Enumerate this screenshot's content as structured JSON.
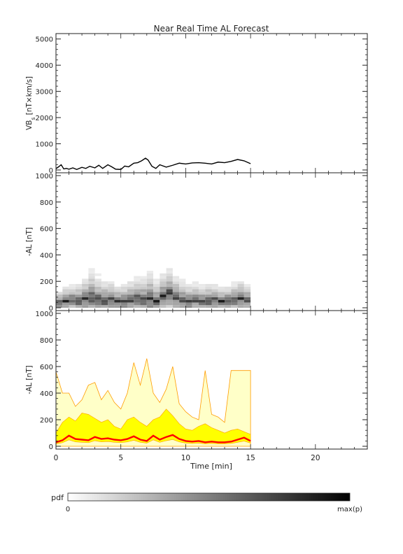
{
  "title": "Near Real Time AL Forecast",
  "x_axis": {
    "label": "Time [min]",
    "ticks": [
      0,
      5,
      10,
      15,
      20
    ],
    "range": [
      0,
      24
    ]
  },
  "colorbar": {
    "label": "pdf",
    "min_label": "0",
    "max_label": "max(p)"
  },
  "colors": {
    "median_line": "#ff0000",
    "inner_band": "#ffff00",
    "outer_band": "#ffffc8",
    "band_edge": "#ff9c00",
    "trace": "#000000"
  },
  "chart_data": [
    {
      "type": "line",
      "panel": "top",
      "ylabel_main": "VB",
      "ylabel_sub": "s",
      "ylabel_rest": " [nT×km/s]",
      "yticks": [
        0,
        1000,
        2000,
        3000,
        4000,
        5000
      ],
      "ylim": [
        0,
        5100
      ],
      "x": [
        0,
        0.2,
        0.4,
        0.6,
        0.8,
        1.0,
        1.3,
        1.6,
        2.0,
        2.3,
        2.6,
        3.0,
        3.3,
        3.6,
        4.0,
        4.3,
        4.6,
        5.0,
        5.3,
        5.6,
        6.0,
        6.3,
        6.6,
        6.9,
        7.1,
        7.4,
        7.7,
        8.0,
        8.5,
        9.0,
        9.5,
        10.0,
        10.5,
        11.0,
        11.5,
        12.0,
        12.5,
        13.0,
        13.5,
        14.0,
        14.5,
        15.0
      ],
      "values": [
        50,
        120,
        200,
        40,
        60,
        30,
        80,
        20,
        100,
        60,
        140,
        80,
        180,
        60,
        200,
        120,
        30,
        20,
        150,
        120,
        260,
        280,
        350,
        450,
        380,
        140,
        60,
        200,
        110,
        180,
        260,
        230,
        270,
        280,
        260,
        230,
        300,
        280,
        330,
        400,
        350,
        240
      ]
    },
    {
      "type": "heatmap",
      "panel": "middle",
      "ylabel": "-AL [nT]",
      "yticks": [
        0,
        200,
        400,
        600,
        800,
        1000
      ],
      "ylim": [
        0,
        1000
      ],
      "x": [
        0,
        0.5,
        1,
        1.5,
        2,
        2.5,
        3,
        3.5,
        4,
        4.5,
        5,
        5.5,
        6,
        6.5,
        7,
        7.5,
        8,
        8.5,
        9,
        9.5,
        10,
        10.5,
        11,
        11.5,
        12,
        12.5,
        13,
        13.5,
        14,
        14.5
      ],
      "median": [
        30,
        40,
        50,
        40,
        60,
        70,
        50,
        40,
        50,
        40,
        40,
        50,
        60,
        50,
        60,
        40,
        80,
        100,
        70,
        50,
        40,
        50,
        40,
        40,
        50,
        40,
        40,
        50,
        60,
        50
      ],
      "spread": [
        120,
        150,
        140,
        180,
        200,
        260,
        220,
        200,
        180,
        160,
        170,
        190,
        200,
        220,
        260,
        200,
        220,
        240,
        200,
        180,
        170,
        160,
        150,
        180,
        150,
        140,
        150,
        160,
        180,
        150
      ]
    },
    {
      "type": "area",
      "panel": "bottom",
      "ylabel": "-AL [nT]",
      "yticks": [
        0,
        200,
        400,
        600,
        800,
        1000
      ],
      "ylim": [
        0,
        1000
      ],
      "x": [
        0,
        0.5,
        1,
        1.5,
        2,
        2.5,
        3,
        3.5,
        4,
        4.5,
        5,
        5.5,
        6,
        6.5,
        7,
        7.5,
        8,
        8.5,
        9,
        9.5,
        10,
        10.5,
        11,
        11.5,
        12,
        12.5,
        13,
        13.5,
        14,
        14.5,
        15
      ],
      "median": [
        30,
        45,
        80,
        55,
        50,
        45,
        70,
        55,
        60,
        50,
        45,
        55,
        75,
        50,
        40,
        80,
        50,
        70,
        85,
        55,
        40,
        35,
        40,
        30,
        35,
        30,
        30,
        35,
        50,
        65,
        40
      ],
      "inner_upper": [
        100,
        180,
        220,
        190,
        250,
        240,
        210,
        180,
        200,
        150,
        130,
        200,
        220,
        180,
        150,
        200,
        220,
        280,
        230,
        170,
        130,
        120,
        150,
        170,
        140,
        120,
        100,
        120,
        130,
        110,
        90
      ],
      "outer_upper": [
        560,
        400,
        400,
        300,
        350,
        460,
        480,
        350,
        420,
        330,
        280,
        400,
        630,
        460,
        660,
        400,
        330,
        430,
        600,
        320,
        260,
        220,
        200,
        570,
        240,
        220,
        180,
        570,
        570,
        570,
        570
      ]
    }
  ]
}
